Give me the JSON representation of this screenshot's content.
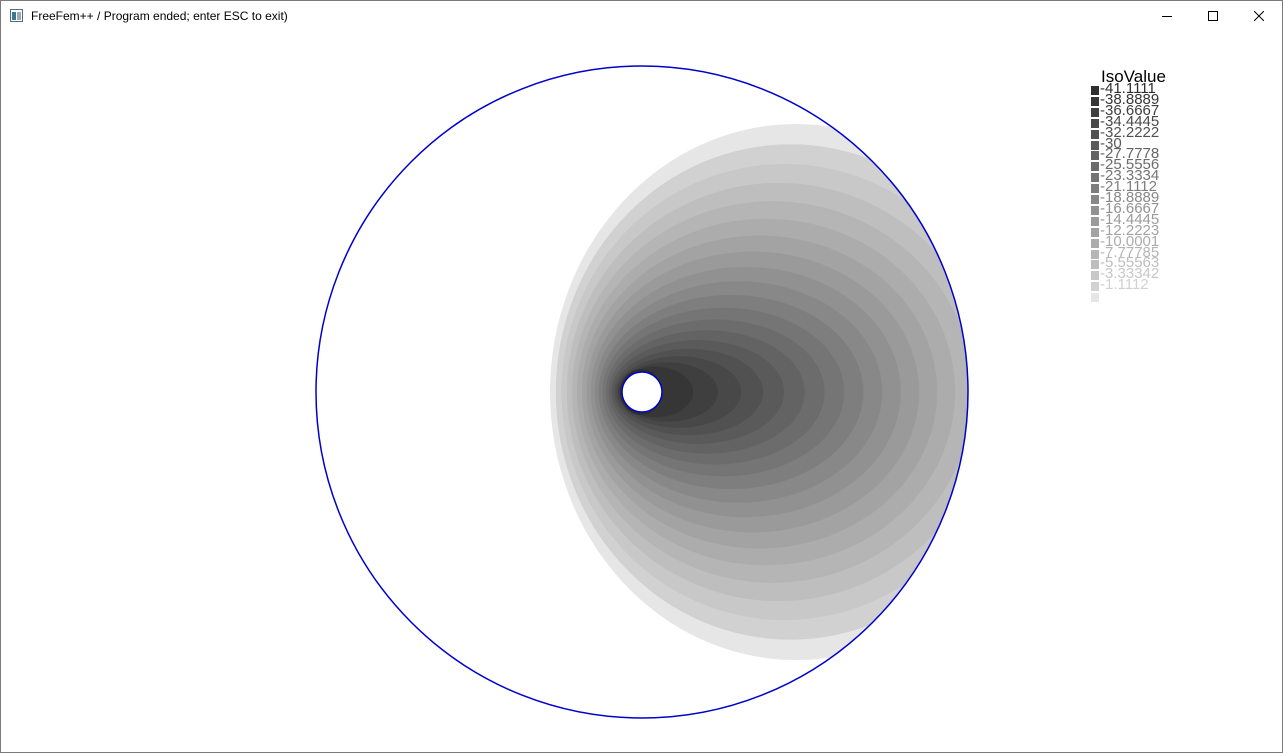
{
  "window": {
    "title": "FreeFem++ / Program ended; enter ESC to exit)",
    "icon": "freefem-app-icon",
    "controls": {
      "minimize_icon": "minimize-icon",
      "maximize_icon": "maximize-icon",
      "close_icon": "close-icon"
    }
  },
  "plot": {
    "boundary_color": "#0000cc",
    "contour_levels": 20
  },
  "legend": {
    "title": "IsoValue",
    "items": [
      {
        "label": "-41.1111",
        "color": "#2e2e2e"
      },
      {
        "label": "-38.8889",
        "color": "#363636"
      },
      {
        "label": "-36.6667",
        "color": "#3f3f3f"
      },
      {
        "label": "-34.4445",
        "color": "#484848"
      },
      {
        "label": "-32.2222",
        "color": "#515151"
      },
      {
        "label": "-30",
        "color": "#5a5a5a"
      },
      {
        "label": "-27.7778",
        "color": "#636363"
      },
      {
        "label": "-25.5556",
        "color": "#6c6c6c"
      },
      {
        "label": "-23.3334",
        "color": "#757575"
      },
      {
        "label": "-21.1112",
        "color": "#7e7e7e"
      },
      {
        "label": "-18.8889",
        "color": "#888888"
      },
      {
        "label": "-16.6667",
        "color": "#919191"
      },
      {
        "label": "-14.4445",
        "color": "#9a9a9a"
      },
      {
        "label": "-12.2223",
        "color": "#a3a3a3"
      },
      {
        "label": "-10.0001",
        "color": "#acacac"
      },
      {
        "label": "-7.77785",
        "color": "#b5b5b5"
      },
      {
        "label": "-5.55563",
        "color": "#bebebe"
      },
      {
        "label": "-3.33342",
        "color": "#c8c8c8"
      },
      {
        "label": "-1.1112",
        "color": "#d1d1d1"
      },
      {
        "label": "",
        "color": "#e6e6e6"
      }
    ]
  }
}
